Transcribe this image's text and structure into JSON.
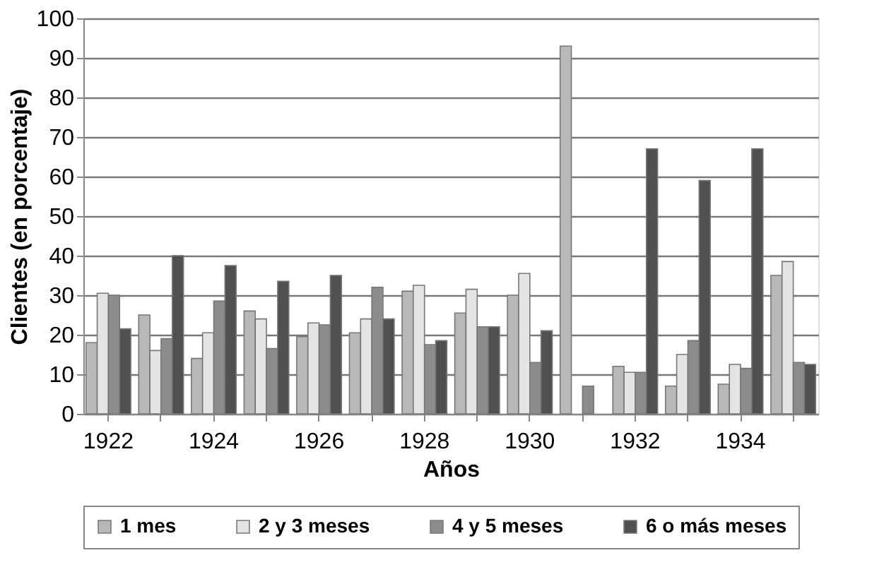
{
  "chart_data": {
    "type": "bar",
    "xlabel": "Años",
    "ylabel": "Clientes (en porcentaje)",
    "categories": [
      "1922",
      null,
      "1924",
      null,
      "1926",
      null,
      "1928",
      null,
      "1930",
      null,
      "1932",
      null,
      "1934",
      null
    ],
    "series": [
      {
        "name": "1 mes",
        "color": "#b8b8b8",
        "values": [
          18,
          25,
          14,
          26,
          19.5,
          20.5,
          31,
          25.5,
          30,
          93,
          12,
          7,
          7.5,
          35
        ]
      },
      {
        "name": "2 y 3 meses",
        "color": "#e4e4e4",
        "values": [
          30.5,
          16,
          20.5,
          24,
          23,
          24,
          32.5,
          31.5,
          35.5,
          null,
          10.5,
          15,
          12.5,
          38.5
        ]
      },
      {
        "name": "4 y 5 meses",
        "color": "#8c8c8c",
        "values": [
          30,
          19,
          28.5,
          16.5,
          22.5,
          32,
          17.5,
          22,
          13,
          7,
          10.5,
          18.5,
          11.5,
          13
        ]
      },
      {
        "name": "6 o más meses",
        "color": "#505050",
        "values": [
          21.5,
          40,
          37.5,
          33.5,
          35,
          24,
          18.5,
          22,
          21,
          null,
          67,
          59,
          67,
          12.5
        ]
      }
    ],
    "ylim": [
      0,
      100
    ],
    "yticks": [
      0,
      10,
      20,
      30,
      40,
      50,
      60,
      70,
      80,
      90,
      100
    ],
    "grid": "y",
    "legend": "bottom"
  }
}
